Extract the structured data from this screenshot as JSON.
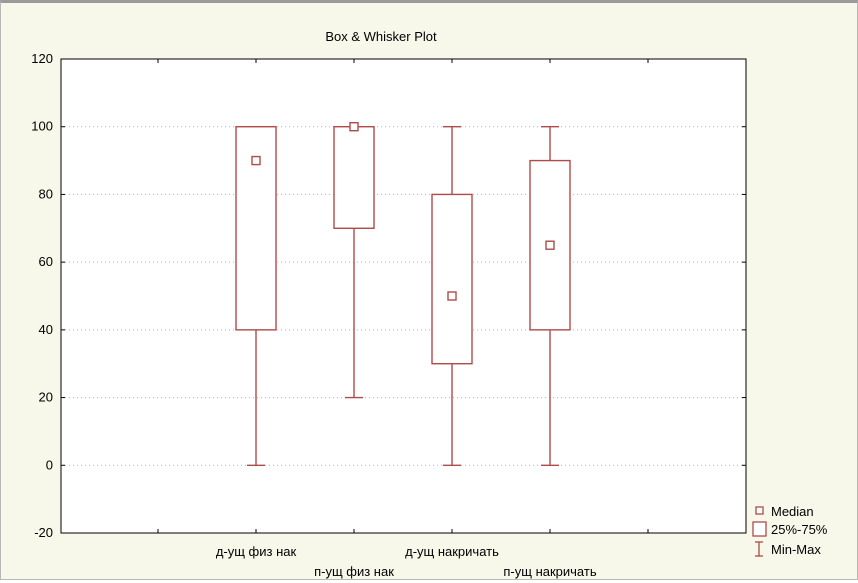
{
  "chart_data": {
    "type": "box",
    "title": "Box & Whisker Plot",
    "xlabel": "",
    "ylabel": "",
    "ylim": [
      -20,
      120
    ],
    "yticks": [
      120,
      100,
      80,
      60,
      40,
      20,
      0,
      -20
    ],
    "grid": "horizontal dotted",
    "color": "#b04a4a",
    "categories": [
      "д-ущ физ нак",
      "п-ущ физ нак",
      "д-ущ накричать",
      "п-ущ накричать"
    ],
    "boxes": [
      {
        "name": "д-ущ физ нак",
        "min": 0,
        "q1": 40,
        "median": 90,
        "q3": 100,
        "max": 100
      },
      {
        "name": "п-ущ физ нак",
        "min": 20,
        "q1": 70,
        "median": 100,
        "q3": 100,
        "max": 100
      },
      {
        "name": "д-ущ накричать",
        "min": 0,
        "q1": 30,
        "median": 50,
        "q3": 80,
        "max": 100
      },
      {
        "name": "п-ущ накричать",
        "min": 0,
        "q1": 40,
        "median": 65,
        "q3": 90,
        "max": 100
      }
    ],
    "legend": {
      "position": "bottom-right",
      "entries": [
        {
          "symbol": "median-marker",
          "label": "Median"
        },
        {
          "symbol": "box",
          "label": "25%-75%"
        },
        {
          "symbol": "whisker",
          "label": "Min-Max"
        }
      ]
    }
  }
}
